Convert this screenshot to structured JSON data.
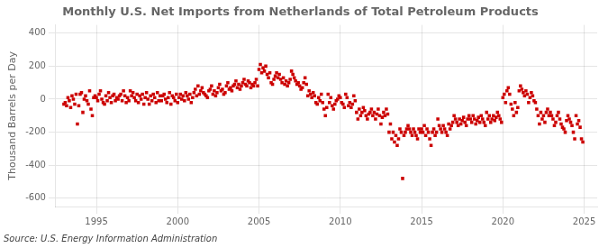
{
  "chart_data": {
    "type": "scatter",
    "title": "Monthly U.S. Net Imports from Netherlands of Total Petroleum Products",
    "y_label": "Thousand Barrels per Day",
    "annotations": [
      "Source: U.S. Energy Information Administration"
    ],
    "color": "#cc0000",
    "marker": "square",
    "grid": true,
    "xlim": [
      1992.5,
      2025.8
    ],
    "ylim": [
      -650,
      450
    ],
    "xticks": [
      1995,
      2000,
      2005,
      2010,
      2015,
      2020,
      2025
    ],
    "yticks": [
      -600,
      -400,
      -200,
      0,
      200,
      400
    ],
    "x": [
      1993.0,
      1993.083,
      1993.167,
      1993.25,
      1993.333,
      1993.417,
      1993.5,
      1993.583,
      1993.667,
      1993.75,
      1993.833,
      1993.917,
      1994.0,
      1994.083,
      1994.167,
      1994.25,
      1994.333,
      1994.417,
      1994.5,
      1994.583,
      1994.667,
      1994.75,
      1994.833,
      1994.917,
      1995.0,
      1995.083,
      1995.167,
      1995.25,
      1995.333,
      1995.417,
      1995.5,
      1995.583,
      1995.667,
      1995.75,
      1995.833,
      1995.917,
      1996.0,
      1996.083,
      1996.167,
      1996.25,
      1996.333,
      1996.417,
      1996.5,
      1996.583,
      1996.667,
      1996.75,
      1996.833,
      1996.917,
      1997.0,
      1997.083,
      1997.167,
      1997.25,
      1997.333,
      1997.417,
      1997.5,
      1997.583,
      1997.667,
      1997.75,
      1997.833,
      1997.917,
      1998.0,
      1998.083,
      1998.167,
      1998.25,
      1998.333,
      1998.417,
      1998.5,
      1998.583,
      1998.667,
      1998.75,
      1998.833,
      1998.917,
      1999.0,
      1999.083,
      1999.167,
      1999.25,
      1999.333,
      1999.417,
      1999.5,
      1999.583,
      1999.667,
      1999.75,
      1999.833,
      1999.917,
      2000.0,
      2000.083,
      2000.167,
      2000.25,
      2000.333,
      2000.417,
      2000.5,
      2000.583,
      2000.667,
      2000.75,
      2000.833,
      2000.917,
      2001.0,
      2001.083,
      2001.167,
      2001.25,
      2001.333,
      2001.417,
      2001.5,
      2001.583,
      2001.667,
      2001.75,
      2001.833,
      2001.917,
      2002.0,
      2002.083,
      2002.167,
      2002.25,
      2002.333,
      2002.417,
      2002.5,
      2002.583,
      2002.667,
      2002.75,
      2002.833,
      2002.917,
      2003.0,
      2003.083,
      2003.167,
      2003.25,
      2003.333,
      2003.417,
      2003.5,
      2003.583,
      2003.667,
      2003.75,
      2003.833,
      2003.917,
      2004.0,
      2004.083,
      2004.167,
      2004.25,
      2004.333,
      2004.417,
      2004.5,
      2004.583,
      2004.667,
      2004.75,
      2004.833,
      2004.917,
      2005.0,
      2005.083,
      2005.167,
      2005.25,
      2005.333,
      2005.417,
      2005.5,
      2005.583,
      2005.667,
      2005.75,
      2005.833,
      2005.917,
      2006.0,
      2006.083,
      2006.167,
      2006.25,
      2006.333,
      2006.417,
      2006.5,
      2006.583,
      2006.667,
      2006.75,
      2006.833,
      2006.917,
      2007.0,
      2007.083,
      2007.167,
      2007.25,
      2007.333,
      2007.417,
      2007.5,
      2007.583,
      2007.667,
      2007.75,
      2007.833,
      2007.917,
      2008.0,
      2008.083,
      2008.167,
      2008.25,
      2008.333,
      2008.417,
      2008.5,
      2008.583,
      2008.667,
      2008.75,
      2008.833,
      2008.917,
      2009.0,
      2009.083,
      2009.167,
      2009.25,
      2009.333,
      2009.417,
      2009.5,
      2009.583,
      2009.667,
      2009.75,
      2009.833,
      2009.917,
      2010.0,
      2010.083,
      2010.167,
      2010.25,
      2010.333,
      2010.417,
      2010.5,
      2010.583,
      2010.667,
      2010.75,
      2010.833,
      2010.917,
      2011.0,
      2011.083,
      2011.167,
      2011.25,
      2011.333,
      2011.417,
      2011.5,
      2011.583,
      2011.667,
      2011.75,
      2011.833,
      2011.917,
      2012.0,
      2012.083,
      2012.167,
      2012.25,
      2012.333,
      2012.417,
      2012.5,
      2012.583,
      2012.667,
      2012.75,
      2012.833,
      2012.917,
      2013.0,
      2013.083,
      2013.167,
      2013.25,
      2013.333,
      2013.417,
      2013.5,
      2013.583,
      2013.667,
      2013.75,
      2013.833,
      2013.917,
      2014.0,
      2014.083,
      2014.167,
      2014.25,
      2014.333,
      2014.417,
      2014.5,
      2014.583,
      2014.667,
      2014.75,
      2014.833,
      2014.917,
      2015.0,
      2015.083,
      2015.167,
      2015.25,
      2015.333,
      2015.417,
      2015.5,
      2015.583,
      2015.667,
      2015.75,
      2015.833,
      2015.917,
      2016.0,
      2016.083,
      2016.167,
      2016.25,
      2016.333,
      2016.417,
      2016.5,
      2016.583,
      2016.667,
      2016.75,
      2016.833,
      2016.917,
      2017.0,
      2017.083,
      2017.167,
      2017.25,
      2017.333,
      2017.417,
      2017.5,
      2017.583,
      2017.667,
      2017.75,
      2017.833,
      2017.917,
      2018.0,
      2018.083,
      2018.167,
      2018.25,
      2018.333,
      2018.417,
      2018.5,
      2018.583,
      2018.667,
      2018.75,
      2018.833,
      2018.917,
      2019.0,
      2019.083,
      2019.167,
      2019.25,
      2019.333,
      2019.417,
      2019.5,
      2019.583,
      2019.667,
      2019.75,
      2019.833,
      2019.917,
      2020.0,
      2020.083,
      2020.167,
      2020.25,
      2020.333,
      2020.417,
      2020.5,
      2020.583,
      2020.667,
      2020.75,
      2020.833,
      2020.917,
      2021.0,
      2021.083,
      2021.167,
      2021.25,
      2021.333,
      2021.417,
      2021.5,
      2021.583,
      2021.667,
      2021.75,
      2021.833,
      2021.917,
      2022.0,
      2022.083,
      2022.167,
      2022.25,
      2022.333,
      2022.417,
      2022.5,
      2022.583,
      2022.667,
      2022.75,
      2022.833,
      2022.917,
      2023.0,
      2023.083,
      2023.167,
      2023.25,
      2023.333,
      2023.417,
      2023.5,
      2023.583,
      2023.667,
      2023.75,
      2023.833,
      2023.917,
      2024.0,
      2024.083,
      2024.167,
      2024.25,
      2024.333,
      2024.417,
      2024.5,
      2024.583,
      2024.667,
      2024.75,
      2024.833,
      2024.917
    ],
    "values": [
      -30,
      -20,
      -40,
      10,
      -10,
      -50,
      20,
      0,
      -30,
      30,
      -150,
      -40,
      30,
      40,
      -80,
      0,
      20,
      -10,
      -30,
      50,
      -60,
      -100,
      10,
      20,
      10,
      -10,
      30,
      50,
      0,
      -20,
      -30,
      20,
      -10,
      40,
      10,
      -20,
      20,
      30,
      -10,
      10,
      0,
      20,
      30,
      -10,
      50,
      20,
      -20,
      10,
      -10,
      50,
      20,
      40,
      10,
      -10,
      30,
      -20,
      20,
      0,
      30,
      -30,
      10,
      40,
      0,
      -30,
      20,
      -10,
      30,
      10,
      -20,
      40,
      -10,
      20,
      -10,
      20,
      30,
      0,
      -20,
      10,
      40,
      -30,
      20,
      10,
      -10,
      30,
      -20,
      10,
      30,
      0,
      20,
      -10,
      40,
      20,
      0,
      30,
      -20,
      10,
      40,
      60,
      20,
      80,
      30,
      50,
      70,
      40,
      30,
      20,
      10,
      50,
      60,
      80,
      30,
      50,
      20,
      40,
      70,
      90,
      50,
      60,
      30,
      40,
      80,
      100,
      60,
      70,
      50,
      80,
      90,
      110,
      70,
      90,
      60,
      80,
      100,
      120,
      90,
      80,
      110,
      100,
      70,
      90,
      80,
      100,
      120,
      80,
      180,
      210,
      160,
      190,
      170,
      200,
      150,
      130,
      160,
      100,
      90,
      120,
      140,
      160,
      130,
      150,
      120,
      100,
      130,
      90,
      110,
      80,
      100,
      120,
      170,
      150,
      130,
      110,
      90,
      100,
      80,
      60,
      70,
      100,
      130,
      90,
      20,
      50,
      30,
      10,
      40,
      20,
      -20,
      -30,
      10,
      -10,
      30,
      -20,
      -60,
      -100,
      -50,
      30,
      -20,
      10,
      -40,
      -60,
      -30,
      -10,
      0,
      20,
      10,
      -20,
      -30,
      -50,
      30,
      10,
      -40,
      -20,
      -50,
      -30,
      20,
      -10,
      -80,
      -120,
      -60,
      -100,
      -80,
      -50,
      -70,
      -100,
      -120,
      -90,
      -80,
      -60,
      -100,
      -80,
      -120,
      -90,
      -60,
      -100,
      -150,
      -110,
      -80,
      -100,
      -60,
      -90,
      -200,
      -150,
      -240,
      -200,
      -260,
      -220,
      -280,
      -240,
      -180,
      -200,
      -480,
      -220,
      -200,
      -180,
      -160,
      -180,
      -200,
      -220,
      -180,
      -200,
      -220,
      -240,
      -180,
      -200,
      -180,
      -200,
      -160,
      -220,
      -180,
      -200,
      -240,
      -280,
      -200,
      -180,
      -220,
      -200,
      -120,
      -160,
      -180,
      -200,
      -160,
      -180,
      -200,
      -220,
      -150,
      -180,
      -160,
      -140,
      -100,
      -120,
      -140,
      -160,
      -120,
      -150,
      -130,
      -110,
      -140,
      -160,
      -120,
      -100,
      -120,
      -140,
      -100,
      -120,
      -150,
      -130,
      -110,
      -140,
      -100,
      -120,
      -140,
      -160,
      -80,
      -120,
      -100,
      -140,
      -120,
      -100,
      -130,
      -110,
      -80,
      -100,
      -120,
      -140,
      10,
      30,
      -20,
      50,
      70,
      30,
      -30,
      -60,
      -100,
      -20,
      -80,
      -50,
      50,
      80,
      60,
      40,
      20,
      50,
      30,
      -20,
      10,
      40,
      20,
      -10,
      -20,
      -60,
      -100,
      -150,
      -80,
      -120,
      -100,
      -140,
      -80,
      -60,
      -100,
      -80,
      -100,
      -120,
      -160,
      -140,
      -100,
      -80,
      -120,
      -150,
      -170,
      -180,
      -200,
      -130,
      -100,
      -120,
      -140,
      -160,
      -200,
      -240,
      -100,
      -150,
      -130,
      -170,
      -240,
      -260
    ]
  }
}
